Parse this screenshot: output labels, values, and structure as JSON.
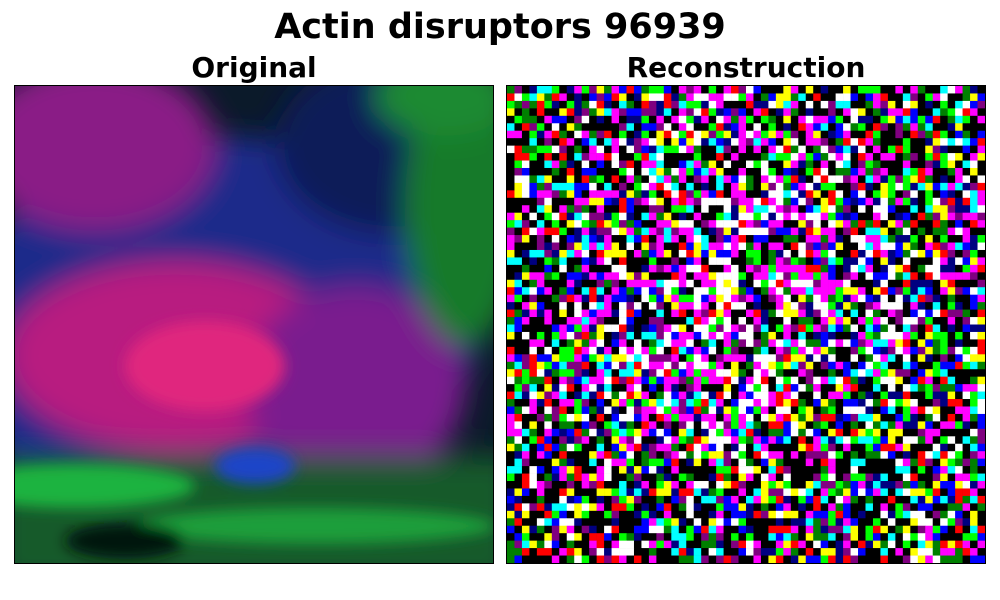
{
  "title": "Actin disruptors 96939",
  "panels": [
    {
      "title": "Original",
      "image": "microscopy-cell-original"
    },
    {
      "title": "Reconstruction",
      "image": "noisy-pixel-reconstruction"
    }
  ],
  "colors": {
    "nucleus": "#c21d7a",
    "cytoplasm": "#22249a",
    "actin": "#1fae3a",
    "background": "#0a1208"
  }
}
